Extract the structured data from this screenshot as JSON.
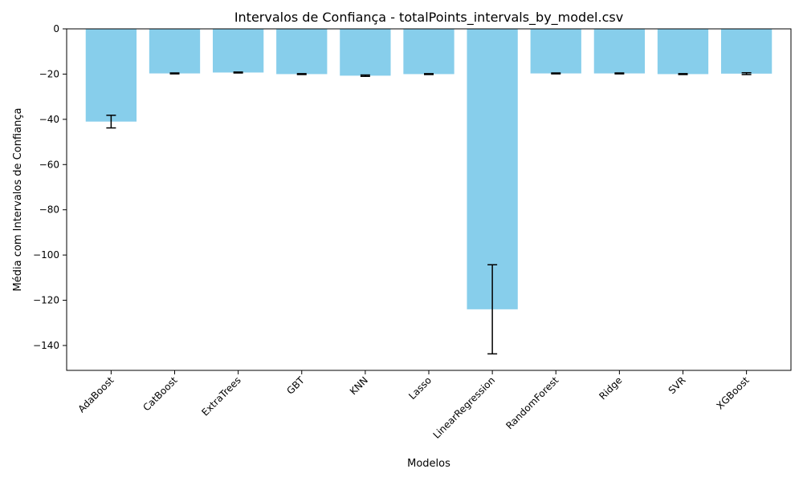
{
  "chart_data": {
    "type": "bar",
    "title": "Intervalos de Confiança - totalPoints_intervals_by_model.csv",
    "xlabel": "Modelos",
    "ylabel": "Média com Intervalos de Confiança",
    "categories": [
      "AdaBoost",
      "CatBoost",
      "ExtraTrees",
      "GBT",
      "KNN",
      "Lasso",
      "LinearRegression",
      "RandomForest",
      "Ridge",
      "SVR",
      "XGBoost"
    ],
    "values": [
      -41.0,
      -19.7,
      -19.3,
      -20.0,
      -20.7,
      -20.0,
      -124.0,
      -19.7,
      -19.7,
      -20.0,
      -19.8
    ],
    "error_low": [
      -43.8,
      -19.9,
      -19.5,
      -20.2,
      -21.0,
      -20.2,
      -143.7,
      -19.9,
      -19.9,
      -20.2,
      -20.2
    ],
    "error_high": [
      -38.2,
      -19.5,
      -19.1,
      -19.8,
      -20.4,
      -19.8,
      -104.3,
      -19.5,
      -19.5,
      -19.8,
      -19.4
    ],
    "ylim": [
      -151,
      0
    ],
    "yticks": [
      0,
      -20,
      -40,
      -60,
      -80,
      -100,
      -120,
      -140
    ],
    "bar_color": "#87ceeb",
    "error_color": "#000000",
    "grid": false,
    "legend": "none"
  }
}
